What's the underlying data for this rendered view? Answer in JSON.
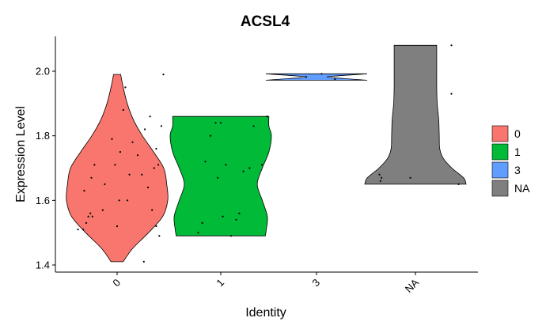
{
  "chart_data": {
    "type": "violin",
    "title": "ACSL4",
    "xlabel": "Identity",
    "ylabel": "Expression Level",
    "categories": [
      "0",
      "1",
      "3",
      "NA"
    ],
    "ylim": [
      1.38,
      2.11
    ],
    "yticks": [
      1.4,
      1.6,
      1.8,
      2.0
    ],
    "ytick_labels": [
      "1.4",
      "1.6",
      "1.8",
      "2.0"
    ],
    "legend": {
      "placement": "right",
      "entries": [
        {
          "label": "0",
          "color": "#F8766D"
        },
        {
          "label": "1",
          "color": "#00BA38"
        },
        {
          "label": "3",
          "color": "#619CFF"
        },
        {
          "label": "NA",
          "color": "#7F7F7F"
        }
      ]
    },
    "violins": [
      {
        "category": "0",
        "color": "#F8766D",
        "min": 1.41,
        "max": 1.99,
        "density": [
          [
            1.41,
            0.12
          ],
          [
            1.45,
            0.3
          ],
          [
            1.5,
            0.62
          ],
          [
            1.55,
            0.9
          ],
          [
            1.6,
            1.0
          ],
          [
            1.65,
            0.98
          ],
          [
            1.7,
            0.92
          ],
          [
            1.75,
            0.72
          ],
          [
            1.8,
            0.5
          ],
          [
            1.85,
            0.32
          ],
          [
            1.9,
            0.2
          ],
          [
            1.95,
            0.12
          ],
          [
            1.99,
            0.07
          ]
        ],
        "points": [
          [
            -0.38,
            1.51
          ],
          [
            -0.33,
            1.51
          ],
          [
            -0.3,
            1.53
          ],
          [
            -0.28,
            1.55
          ],
          [
            -0.26,
            1.56
          ],
          [
            -0.24,
            1.55
          ],
          [
            -0.32,
            1.63
          ],
          [
            -0.25,
            1.67
          ],
          [
            -0.22,
            1.71
          ],
          [
            -0.12,
            1.65
          ],
          [
            -0.14,
            1.57
          ],
          [
            -0.05,
            1.79
          ],
          [
            -0.02,
            1.71
          ],
          [
            0.0,
            1.52
          ],
          [
            0.02,
            1.6
          ],
          [
            0.03,
            1.75
          ],
          [
            0.06,
            1.88
          ],
          [
            0.08,
            1.95
          ],
          [
            0.1,
            1.6
          ],
          [
            0.12,
            1.68
          ],
          [
            0.15,
            1.78
          ],
          [
            0.2,
            1.74
          ],
          [
            0.24,
            1.68
          ],
          [
            0.27,
            1.82
          ],
          [
            0.3,
            1.64
          ],
          [
            0.32,
            1.86
          ],
          [
            0.34,
            1.57
          ],
          [
            0.36,
            1.7
          ],
          [
            0.38,
            1.76
          ],
          [
            0.4,
            1.71
          ],
          [
            0.38,
            1.52
          ],
          [
            0.41,
            1.49
          ],
          [
            0.43,
            1.83
          ],
          [
            0.45,
            1.99
          ],
          [
            0.26,
            1.41
          ]
        ]
      },
      {
        "category": "1",
        "color": "#00BA38",
        "min": 1.49,
        "max": 1.86,
        "density": [
          [
            1.49,
            0.88
          ],
          [
            1.51,
            0.9
          ],
          [
            1.55,
            0.92
          ],
          [
            1.6,
            0.82
          ],
          [
            1.65,
            0.72
          ],
          [
            1.7,
            0.82
          ],
          [
            1.75,
            0.95
          ],
          [
            1.8,
            1.0
          ],
          [
            1.83,
            0.95
          ],
          [
            1.86,
            0.95
          ]
        ],
        "points": [
          [
            -0.22,
            1.5
          ],
          [
            -0.18,
            1.53
          ],
          [
            -0.15,
            1.72
          ],
          [
            -0.1,
            1.8
          ],
          [
            -0.05,
            1.84
          ],
          [
            0.0,
            1.84
          ],
          [
            -0.03,
            1.67
          ],
          [
            0.02,
            1.55
          ],
          [
            0.05,
            1.71
          ],
          [
            0.15,
            1.54
          ],
          [
            0.18,
            1.56
          ],
          [
            0.22,
            1.69
          ],
          [
            0.28,
            1.7
          ],
          [
            0.32,
            1.83
          ],
          [
            0.4,
            1.71
          ],
          [
            0.45,
            1.86
          ],
          [
            0.1,
            1.49
          ]
        ]
      },
      {
        "category": "3",
        "color": "#619CFF",
        "min": 1.972,
        "max": 1.992,
        "density": [
          [
            1.972,
            1.0
          ],
          [
            1.977,
            0.55
          ],
          [
            1.982,
            0.2
          ],
          [
            1.987,
            0.55
          ],
          [
            1.992,
            1.0
          ]
        ],
        "points": [
          [
            -0.1,
            1.982
          ],
          [
            0.05,
            1.992
          ],
          [
            0.18,
            1.975
          ]
        ]
      },
      {
        "category": "NA",
        "color": "#7F7F7F",
        "min": 1.65,
        "max": 2.08,
        "density": [
          [
            1.65,
            1.0
          ],
          [
            1.67,
            0.95
          ],
          [
            1.7,
            0.72
          ],
          [
            1.73,
            0.55
          ],
          [
            1.76,
            0.48
          ],
          [
            1.8,
            0.47
          ],
          [
            1.85,
            0.46
          ],
          [
            1.9,
            0.43
          ],
          [
            1.95,
            0.42
          ],
          [
            2.0,
            0.42
          ],
          [
            2.05,
            0.42
          ],
          [
            2.08,
            0.42
          ]
        ],
        "points": [
          [
            -0.35,
            1.68
          ],
          [
            -0.34,
            1.66
          ],
          [
            -0.33,
            1.67
          ],
          [
            0.35,
            2.08
          ],
          [
            0.35,
            1.93
          ],
          [
            0.42,
            1.65
          ],
          [
            -0.05,
            1.67
          ]
        ]
      }
    ]
  }
}
